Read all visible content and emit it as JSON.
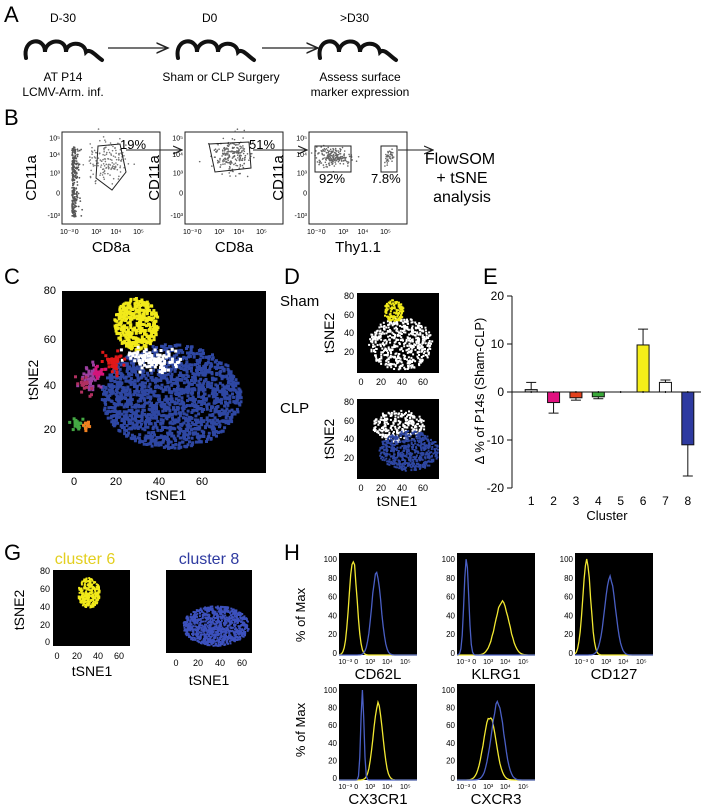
{
  "panels": {
    "a": {
      "letter": "A",
      "steps": [
        {
          "day": "D-30",
          "caption1": "AT P14",
          "caption2": "LCMV-Arm. inf."
        },
        {
          "day": "D0",
          "caption1": "Sham or CLP Surgery",
          "caption2": ""
        },
        {
          "day": ">D30",
          "caption1": "Assess surface",
          "caption2": "marker expression"
        }
      ]
    },
    "b": {
      "letter": "B",
      "plots": [
        {
          "xlabel": "CD8a",
          "ylabel": "CD11a",
          "gates": [
            "19%"
          ]
        },
        {
          "xlabel": "CD8a",
          "ylabel": "CD11a",
          "gates": [
            "51%"
          ]
        },
        {
          "xlabel": "Thy1.1",
          "ylabel": "CD11a",
          "gates": [
            "92%",
            "7.8%"
          ]
        }
      ],
      "analysis_line1": "FlowSOM",
      "analysis_line2": "+ tSNE",
      "analysis_line3": "analysis",
      "x_ticks": [
        "10⁻³",
        "0",
        "10³",
        "10⁴",
        "10⁵"
      ],
      "y_ticks": [
        "10⁵",
        "10⁴",
        "10³",
        "0",
        "-10³"
      ]
    },
    "c": {
      "letter": "C",
      "xlabel": "tSNE1",
      "ylabel": "tSNE2",
      "x_ticks": [
        "0",
        "20",
        "40",
        "60"
      ],
      "y_ticks": [
        "80",
        "60",
        "40",
        "20"
      ]
    },
    "d": {
      "letter": "D",
      "sham_label": "Sham",
      "clp_label": "CLP",
      "xlabel": "tSNE1",
      "ylabel": "tSNE2",
      "x_ticks": [
        "0",
        "20",
        "40",
        "60"
      ],
      "y_ticks": [
        "80",
        "60",
        "40",
        "20"
      ]
    },
    "e": {
      "letter": "E",
      "ylabel": "Δ % of P14s (Sham-CLP)",
      "xlabel": "Cluster"
    },
    "g": {
      "letter": "G",
      "title1": "cluster 6",
      "title2": "cluster 8",
      "xlabel": "tSNE1",
      "ylabel": "tSNE2",
      "x_ticks": [
        "0",
        "20",
        "40",
        "60"
      ],
      "y_ticks": [
        "80",
        "60",
        "40",
        "20",
        "0"
      ]
    },
    "h": {
      "letter": "H",
      "ylabel": "% of Max",
      "markers": [
        "CD62L",
        "KLRG1",
        "CD127",
        "CX3CR1",
        "CXCR3"
      ],
      "y_ticks": [
        "100",
        "80",
        "60",
        "40",
        "20",
        "0"
      ],
      "x_ticks": [
        "10⁻³",
        "0",
        "10³",
        "10⁴",
        "10⁵"
      ]
    }
  },
  "colors": {
    "cluster1": "#bfbfbf",
    "cluster2": "#d4147a",
    "cluster3": "#e2401c",
    "cluster4": "#44a844",
    "cluster5": "#9c3fa0",
    "cluster6": "#f2ea1a",
    "cluster7": "#ffffff",
    "cluster8": "#2e47a3",
    "histogram_yellow": "#f2e831",
    "histogram_blue": "#4a5fc4"
  },
  "chart_data": {
    "type": "bar",
    "categories": [
      "1",
      "2",
      "3",
      "4",
      "5",
      "6",
      "7",
      "8"
    ],
    "values": [
      0.5,
      -2.2,
      -1.2,
      -1.0,
      0,
      9.8,
      2.0,
      -11.0
    ],
    "errors": [
      1.5,
      2.2,
      0.5,
      0.4,
      0,
      3.3,
      0.5,
      6.5
    ],
    "bar_colors": [
      "#bfbfbf",
      "#e0107f",
      "#e2401c",
      "#3aa83a",
      "#ffffff",
      "#f5ee19",
      "#ffffff",
      "#2e3aa0"
    ],
    "xlabel": "Cluster",
    "ylabel": "Δ % of P14s (Sham-CLP)",
    "ylim": [
      -20,
      20
    ],
    "yticks": [
      -20,
      -10,
      0,
      10,
      20
    ]
  }
}
